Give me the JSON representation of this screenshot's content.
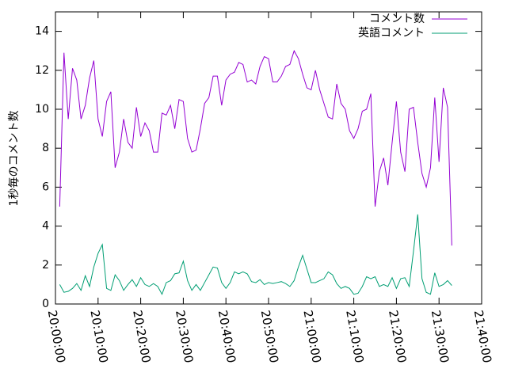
{
  "chart_data": {
    "type": "line",
    "ylabel": "1秒毎のコメント数",
    "xlim": [
      "20:00:00",
      "21:40:00"
    ],
    "xticks": [
      "20:00:00",
      "20:10:00",
      "20:20:00",
      "20:30:00",
      "20:40:00",
      "20:50:00",
      "21:00:00",
      "21:10:00",
      "21:20:00",
      "21:30:00",
      "21:40:00"
    ],
    "ylim": [
      0,
      15
    ],
    "yticks": [
      0,
      2,
      4,
      6,
      8,
      10,
      12,
      14
    ],
    "legend": "top-right",
    "x": [
      "20:01:00",
      "20:02:00",
      "20:03:00",
      "20:04:00",
      "20:05:00",
      "20:06:00",
      "20:07:00",
      "20:08:00",
      "20:09:00",
      "20:10:00",
      "20:11:00",
      "20:12:00",
      "20:13:00",
      "20:14:00",
      "20:15:00",
      "20:16:00",
      "20:17:00",
      "20:18:00",
      "20:19:00",
      "20:20:00",
      "20:21:00",
      "20:22:00",
      "20:23:00",
      "20:24:00",
      "20:25:00",
      "20:26:00",
      "20:27:00",
      "20:28:00",
      "20:29:00",
      "20:30:00",
      "20:31:00",
      "20:32:00",
      "20:33:00",
      "20:34:00",
      "20:35:00",
      "20:36:00",
      "20:37:00",
      "20:38:00",
      "20:39:00",
      "20:40:00",
      "20:41:00",
      "20:42:00",
      "20:43:00",
      "20:44:00",
      "20:45:00",
      "20:46:00",
      "20:47:00",
      "20:48:00",
      "20:49:00",
      "20:50:00",
      "20:51:00",
      "20:52:00",
      "20:53:00",
      "20:54:00",
      "20:55:00",
      "20:56:00",
      "20:57:00",
      "20:58:00",
      "20:59:00",
      "21:00:00",
      "21:01:00",
      "21:02:00",
      "21:03:00",
      "21:04:00",
      "21:05:00",
      "21:06:00",
      "21:07:00",
      "21:08:00",
      "21:09:00",
      "21:10:00",
      "21:11:00",
      "21:12:00",
      "21:13:00",
      "21:14:00",
      "21:15:00",
      "21:16:00",
      "21:17:00",
      "21:18:00",
      "21:19:00",
      "21:20:00",
      "21:21:00",
      "21:22:00",
      "21:23:00",
      "21:24:00",
      "21:25:00",
      "21:26:00",
      "21:27:00",
      "21:28:00",
      "21:29:00",
      "21:30:00",
      "21:31:00",
      "21:32:00",
      "21:33:00"
    ],
    "series": [
      {
        "name": "コメント数",
        "color": "#9400d3",
        "values": [
          5.0,
          12.9,
          9.5,
          12.1,
          11.5,
          9.5,
          10.2,
          11.6,
          12.5,
          9.5,
          8.6,
          10.4,
          10.9,
          7.0,
          7.8,
          9.5,
          8.3,
          8.0,
          10.1,
          8.6,
          9.3,
          8.9,
          7.8,
          7.8,
          9.8,
          9.7,
          10.2,
          9.0,
          10.5,
          10.4,
          8.5,
          7.8,
          7.9,
          9.0,
          10.3,
          10.6,
          11.7,
          11.7,
          10.2,
          11.5,
          11.8,
          11.9,
          12.4,
          12.3,
          11.4,
          11.5,
          11.3,
          12.2,
          12.7,
          12.6,
          11.4,
          11.4,
          11.7,
          12.2,
          12.3,
          13.0,
          12.6,
          11.8,
          11.1,
          11.0,
          12.0,
          11.0,
          10.3,
          9.6,
          9.5,
          11.3,
          10.3,
          10.0,
          8.9,
          8.5,
          9.0,
          9.9,
          10.0,
          10.8,
          5.0,
          6.8,
          7.5,
          6.1,
          8.3,
          10.4,
          7.8,
          6.8,
          10.0,
          10.1,
          8.3,
          6.7,
          6.0,
          7.0,
          10.6,
          7.3,
          11.1,
          10.1,
          3.0
        ]
      },
      {
        "name": "英語コメント",
        "color": "#009e73",
        "values": [
          1.0,
          0.6,
          0.65,
          0.8,
          1.05,
          0.7,
          1.45,
          0.9,
          1.9,
          2.6,
          3.05,
          0.8,
          0.7,
          1.5,
          1.2,
          0.7,
          1.0,
          1.25,
          0.9,
          1.35,
          1.0,
          0.9,
          1.05,
          0.9,
          0.5,
          1.1,
          1.2,
          1.55,
          1.6,
          2.2,
          1.2,
          0.7,
          1.0,
          0.7,
          1.1,
          1.5,
          1.9,
          1.85,
          1.1,
          0.8,
          1.1,
          1.65,
          1.55,
          1.65,
          1.55,
          1.15,
          1.1,
          1.25,
          1.0,
          1.1,
          1.05,
          1.1,
          1.15,
          1.05,
          0.9,
          1.2,
          1.9,
          2.5,
          1.8,
          1.1,
          1.1,
          1.2,
          1.3,
          1.65,
          1.5,
          1.05,
          0.8,
          0.9,
          0.8,
          0.5,
          0.55,
          0.9,
          1.4,
          1.3,
          1.4,
          0.9,
          1.0,
          0.9,
          1.35,
          0.8,
          1.3,
          1.35,
          0.9,
          2.7,
          4.6,
          1.3,
          0.6,
          0.5,
          1.6,
          0.9,
          1.0,
          1.2,
          0.95
        ]
      }
    ]
  }
}
